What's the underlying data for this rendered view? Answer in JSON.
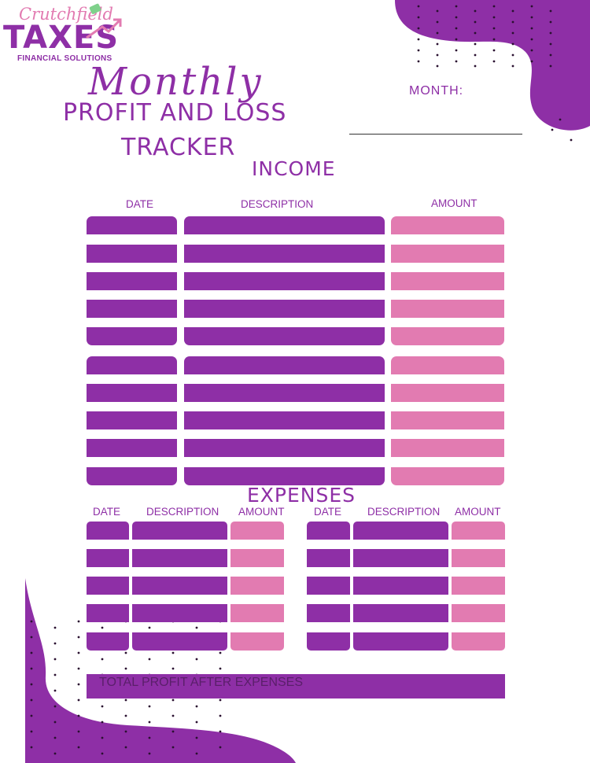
{
  "logo": {
    "script": "Crutchfield",
    "main": "TAXES",
    "sub": "FINANCIAL SOLUTIONS"
  },
  "title": {
    "script": "Monthly",
    "line1": "PROFIT AND LOSS",
    "line2": "TRACKER"
  },
  "month": {
    "label": "MONTH:",
    "value": ""
  },
  "income": {
    "title": "INCOME",
    "columns": [
      "DATE",
      "DESCRIPTION",
      "AMOUNT"
    ],
    "rows": [
      {
        "date": "",
        "description": "",
        "amount": ""
      },
      {
        "date": "",
        "description": "",
        "amount": ""
      },
      {
        "date": "",
        "description": "",
        "amount": ""
      },
      {
        "date": "",
        "description": "",
        "amount": ""
      },
      {
        "date": "",
        "description": "",
        "amount": ""
      },
      {
        "date": "",
        "description": "",
        "amount": ""
      },
      {
        "date": "",
        "description": "",
        "amount": ""
      },
      {
        "date": "",
        "description": "",
        "amount": ""
      },
      {
        "date": "",
        "description": "",
        "amount": ""
      },
      {
        "date": "",
        "description": "",
        "amount": ""
      }
    ]
  },
  "expenses": {
    "title": "EXPENSES",
    "columns": [
      "DATE",
      "DESCRIPTION",
      "AMOUNT"
    ],
    "left_rows": [
      {
        "date": "",
        "description": "",
        "amount": ""
      },
      {
        "date": "",
        "description": "",
        "amount": ""
      },
      {
        "date": "",
        "description": "",
        "amount": ""
      },
      {
        "date": "",
        "description": "",
        "amount": ""
      },
      {
        "date": "",
        "description": "",
        "amount": ""
      }
    ],
    "right_rows": [
      {
        "date": "",
        "description": "",
        "amount": ""
      },
      {
        "date": "",
        "description": "",
        "amount": ""
      },
      {
        "date": "",
        "description": "",
        "amount": ""
      },
      {
        "date": "",
        "description": "",
        "amount": ""
      },
      {
        "date": "",
        "description": "",
        "amount": ""
      }
    ]
  },
  "total": {
    "label": "TOTAL PROFIT AFTER EXPENSES",
    "value": ""
  },
  "colors": {
    "purple": "#8e2fa6",
    "pink": "#e27bb1",
    "text_dark": "#5a1f6a"
  }
}
